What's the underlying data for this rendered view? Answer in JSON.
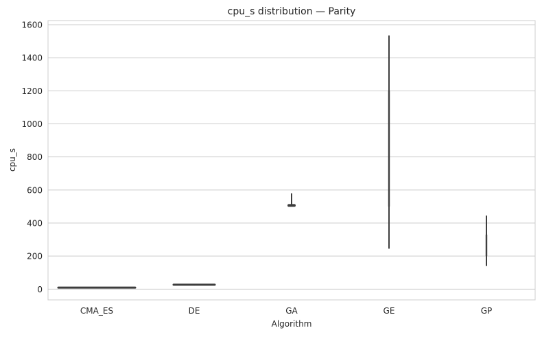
{
  "chart_data": {
    "type": "violin",
    "title": "cpu_s distribution — Parity",
    "xlabel": "Algorithm",
    "ylabel": "cpu_s",
    "categories": [
      "CMA_ES",
      "DE",
      "GA",
      "GE",
      "GP"
    ],
    "ylim": [
      -65,
      1625
    ],
    "yticks": [
      0,
      200,
      400,
      600,
      800,
      1000,
      1200,
      1400,
      1600
    ],
    "grid": true,
    "distributions": [
      {
        "category": "CMA_ES",
        "min": 7,
        "max": 12,
        "q1": 8,
        "median": 9,
        "q3": 10
      },
      {
        "category": "DE",
        "min": 22,
        "max": 30,
        "q1": 25,
        "median": 27,
        "q3": 28
      },
      {
        "category": "GA",
        "min": 505,
        "max": 580,
        "q1": 508,
        "median": 510,
        "q3": 515
      },
      {
        "category": "GE",
        "min": 245,
        "max": 1535,
        "q1": 500,
        "median": 800,
        "q3": 1200
      },
      {
        "category": "GP",
        "min": 140,
        "max": 445,
        "q1": 200,
        "median": 260,
        "q3": 330
      }
    ]
  }
}
